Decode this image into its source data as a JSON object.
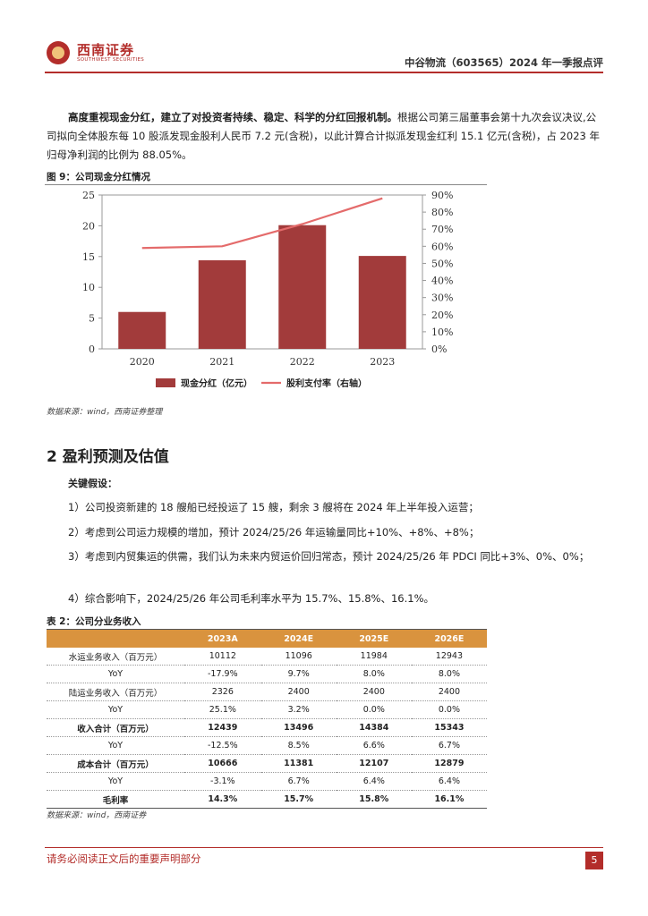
{
  "header": {
    "logo_name": "西南证券",
    "logo_sub": "SOUTHWEST SECURITIES",
    "title": "中谷物流（603565）2024 年一季报点评"
  },
  "intro": {
    "bold_text": "高度重视现金分红，建立了对投资者持续、稳定、科学的分红回报机制。",
    "rest_text": "根据公司第三届董事会第十九次会议决议,公司拟向全体股东每 10 股派发现金股利人民币 7.2 元(含税)，以此计算合计拟派发现金红利 15.1 亿元(含税)，占 2023 年归母净利润的比例为 88.05%。"
  },
  "figure": {
    "title": "图 9：公司现金分红情况",
    "source": "数据来源：wind，西南证券整理"
  },
  "chart_data": {
    "type": "bar",
    "categories": [
      "2020",
      "2021",
      "2022",
      "2023"
    ],
    "series": [
      {
        "name": "现金分红（亿元）",
        "type": "bar",
        "axis": "left",
        "color": "#a23b3b",
        "values": [
          6.0,
          14.4,
          20.1,
          15.1
        ]
      },
      {
        "name": "股利支付率（右轴）",
        "type": "line",
        "axis": "right",
        "color": "#e46b6b",
        "values": [
          59.0,
          60.0,
          73.0,
          88.05
        ]
      }
    ],
    "y_left_ticks": [
      "0",
      "5",
      "10",
      "15",
      "20",
      "25"
    ],
    "y_right_ticks": [
      "0%",
      "10%",
      "20%",
      "30%",
      "40%",
      "50%",
      "60%",
      "70%",
      "80%",
      "90%"
    ],
    "ylim_left": [
      0,
      25
    ],
    "ylim_right": [
      0,
      90
    ],
    "legend_position": "bottom"
  },
  "section": {
    "title": "2  盈利预测及估值"
  },
  "assumptions": {
    "heading": "关键假设：",
    "items": [
      "1）公司投资新建的 18 艘船已经投运了 15 艘，剩余 3 艘将在 2024 年上半年投入运营；",
      "2）考虑到公司运力规模的增加，预计 2024/25/26 年运输量同比+10%、+8%、+8%；",
      "3）考虑到内贸集运的供需，我们认为未来内贸运价回归常态，预计 2024/25/26 年 PDCI 同比+3%、0%、0%；",
      "4）综合影响下，2024/25/26 年公司毛利率水平为 15.7%、15.8%、16.1%。"
    ]
  },
  "table": {
    "title": "表 2：公司分业务收入",
    "headers": [
      "",
      "2023A",
      "2024E",
      "2025E",
      "2026E"
    ],
    "rows": [
      [
        "水运业务收入（百万元）",
        "10112",
        "11096",
        "11984",
        "12943"
      ],
      [
        "YoY",
        "-17.9%",
        "9.7%",
        "8.0%",
        "8.0%"
      ],
      [
        "陆运业务收入（百万元）",
        "2326",
        "2400",
        "2400",
        "2400"
      ],
      [
        "YoY",
        "25.1%",
        "3.2%",
        "0.0%",
        "0.0%"
      ],
      [
        "收入合计（百万元）",
        "12439",
        "13496",
        "14384",
        "15343"
      ],
      [
        "YoY",
        "-12.5%",
        "8.5%",
        "6.6%",
        "6.7%"
      ],
      [
        "成本合计（百万元）",
        "10666",
        "11381",
        "12107",
        "12879"
      ],
      [
        "YoY",
        "-3.1%",
        "6.7%",
        "6.4%",
        "6.4%"
      ],
      [
        "毛利率",
        "14.3%",
        "15.7%",
        "15.8%",
        "16.1%"
      ]
    ],
    "source": "数据来源：wind，西南证券"
  },
  "footer": {
    "disclaimer": "请务必阅读正文后的重要声明部分",
    "page": "5"
  }
}
